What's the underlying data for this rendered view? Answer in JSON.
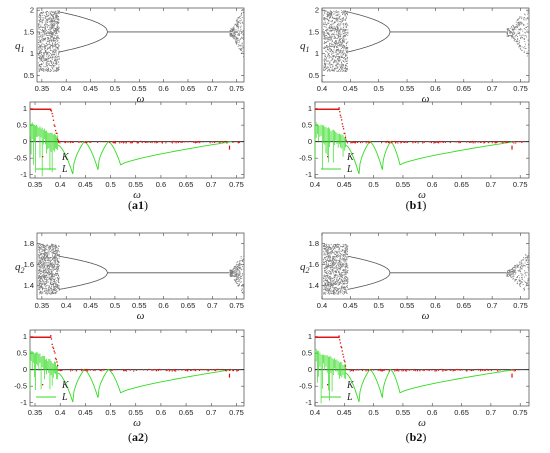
{
  "chart_data": [
    {
      "id": "a1",
      "caption_letter": "a",
      "caption_num": "1",
      "bifurcation": {
        "type": "scatter",
        "ylabel_var": "q",
        "ylabel_sub": "1",
        "xlabel": "ω",
        "xlim": [
          0.34,
          0.765
        ],
        "ylim": [
          0.35,
          2.05
        ],
        "xticks": [
          "0.35",
          "0.4",
          "0.45",
          "0.5",
          "0.55",
          "0.6",
          "0.65",
          "0.7",
          "0.75"
        ],
        "yticks": [
          "0.5",
          "1",
          "1.5",
          "2"
        ],
        "chaos_end": 0.385,
        "period2_end": 0.485,
        "fixed_value": 1.5,
        "chaos_band": [
          0.6,
          2.0
        ],
        "right_chaos_start": 0.735,
        "color": "#7a7a7a"
      },
      "exponents": {
        "type": "line",
        "xlabel": "ω",
        "xlim": [
          0.34,
          0.765
        ],
        "ylim": [
          -1.1,
          1.2
        ],
        "xticks": [
          "0.35",
          "0.4",
          "0.45",
          "0.5",
          "0.55",
          "0.6",
          "0.65",
          "0.7",
          "0.75"
        ],
        "yticks": [
          "1",
          "0.5",
          "0",
          "-0.5",
          "-1"
        ],
        "series": [
          {
            "name": "K",
            "color": "#e01010",
            "marker": "dots"
          },
          {
            "name": "L",
            "color": "#33dd22",
            "marker": "line"
          }
        ],
        "K_one_until": 0.38,
        "K_drop_end": 0.395,
        "L_dips": [
          [
            0.425,
            -0.98
          ],
          [
            0.475,
            -0.85
          ],
          [
            0.52,
            -0.7
          ]
        ],
        "L_chaos_end": 0.395
      }
    },
    {
      "id": "b1",
      "caption_letter": "b",
      "caption_num": "1",
      "bifurcation": {
        "type": "scatter",
        "ylabel_var": "q",
        "ylabel_sub": "1",
        "xlabel": "ω",
        "xlim": [
          0.4,
          0.765
        ],
        "ylim": [
          0.35,
          2.05
        ],
        "xticks": [
          "0.4",
          "0.45",
          "0.5",
          "0.55",
          "0.6",
          "0.65",
          "0.7",
          "0.75"
        ],
        "yticks": [
          "0.5",
          "1",
          "1.5",
          "2"
        ],
        "chaos_end": 0.445,
        "period2_end": 0.52,
        "fixed_value": 1.5,
        "chaos_band": [
          0.6,
          2.0
        ],
        "right_chaos_start": 0.725,
        "color": "#7a7a7a"
      },
      "exponents": {
        "type": "line",
        "xlabel": "ω",
        "xlim": [
          0.4,
          0.765
        ],
        "ylim": [
          -1.1,
          1.2
        ],
        "xticks": [
          "0.4",
          "0.45",
          "0.5",
          "0.55",
          "0.6",
          "0.65",
          "0.7",
          "0.75"
        ],
        "yticks": [
          "1",
          "0.5",
          "0",
          "-0.5",
          "-1"
        ],
        "series": [
          {
            "name": "K",
            "color": "#e01010",
            "marker": "dots"
          },
          {
            "name": "L",
            "color": "#33dd22",
            "marker": "line"
          }
        ],
        "K_one_until": 0.44,
        "K_drop_end": 0.452,
        "L_dips": [
          [
            0.475,
            -0.98
          ],
          [
            0.515,
            -0.85
          ],
          [
            0.545,
            -0.7
          ]
        ],
        "L_chaos_end": 0.452
      }
    },
    {
      "id": "a2",
      "caption_letter": "a",
      "caption_num": "2",
      "bifurcation": {
        "type": "scatter",
        "ylabel_var": "q",
        "ylabel_sub": "2",
        "xlabel": "ω",
        "xlim": [
          0.34,
          0.765
        ],
        "ylim": [
          1.27,
          1.9
        ],
        "xticks": [
          "0.35",
          "0.4",
          "0.45",
          "0.5",
          "0.55",
          "0.6",
          "0.65",
          "0.7",
          "0.75"
        ],
        "yticks": [
          "1.4",
          "1.6",
          "1.8"
        ],
        "chaos_end": 0.385,
        "period2_end": 0.485,
        "fixed_value": 1.52,
        "chaos_band": [
          1.32,
          1.8
        ],
        "right_chaos_start": 0.735,
        "color": "#7a7a7a"
      },
      "exponents": {
        "type": "line",
        "xlabel": "ω",
        "xlim": [
          0.34,
          0.765
        ],
        "ylim": [
          -1.1,
          1.2
        ],
        "xticks": [
          "0.35",
          "0.4",
          "0.45",
          "0.5",
          "0.55",
          "0.6",
          "0.65",
          "0.7",
          "0.75"
        ],
        "yticks": [
          "1",
          "0.5",
          "0",
          "-0.5",
          "-1"
        ],
        "series": [
          {
            "name": "K",
            "color": "#e01010",
            "marker": "dots"
          },
          {
            "name": "L",
            "color": "#33dd22",
            "marker": "line"
          }
        ],
        "K_one_until": 0.38,
        "K_drop_end": 0.395,
        "L_dips": [
          [
            0.425,
            -0.98
          ],
          [
            0.475,
            -0.85
          ],
          [
            0.52,
            -0.7
          ]
        ],
        "L_chaos_end": 0.395
      }
    },
    {
      "id": "b2",
      "caption_letter": "b",
      "caption_num": "2",
      "bifurcation": {
        "type": "scatter",
        "ylabel_var": "q",
        "ylabel_sub": "2",
        "xlabel": "ω",
        "xlim": [
          0.4,
          0.765
        ],
        "ylim": [
          1.27,
          1.9
        ],
        "xticks": [
          "0.4",
          "0.45",
          "0.5",
          "0.55",
          "0.6",
          "0.65",
          "0.7",
          "0.75"
        ],
        "yticks": [
          "1.4",
          "1.6",
          "1.8"
        ],
        "chaos_end": 0.445,
        "period2_end": 0.52,
        "fixed_value": 1.52,
        "chaos_band": [
          1.32,
          1.8
        ],
        "right_chaos_start": 0.725,
        "color": "#7a7a7a"
      },
      "exponents": {
        "type": "line",
        "xlabel": "ω",
        "xlim": [
          0.4,
          0.765
        ],
        "ylim": [
          -1.1,
          1.2
        ],
        "xticks": [
          "0.4",
          "0.45",
          "0.5",
          "0.55",
          "0.6",
          "0.65",
          "0.7",
          "0.75"
        ],
        "yticks": [
          "1",
          "0.5",
          "0",
          "-0.5",
          "-1"
        ],
        "series": [
          {
            "name": "K",
            "color": "#e01010",
            "marker": "dots"
          },
          {
            "name": "L",
            "color": "#33dd22",
            "marker": "line"
          }
        ],
        "K_one_until": 0.44,
        "K_drop_end": 0.452,
        "L_dips": [
          [
            0.475,
            -0.98
          ],
          [
            0.515,
            -0.85
          ],
          [
            0.545,
            -0.7
          ]
        ],
        "L_chaos_end": 0.452
      }
    }
  ]
}
